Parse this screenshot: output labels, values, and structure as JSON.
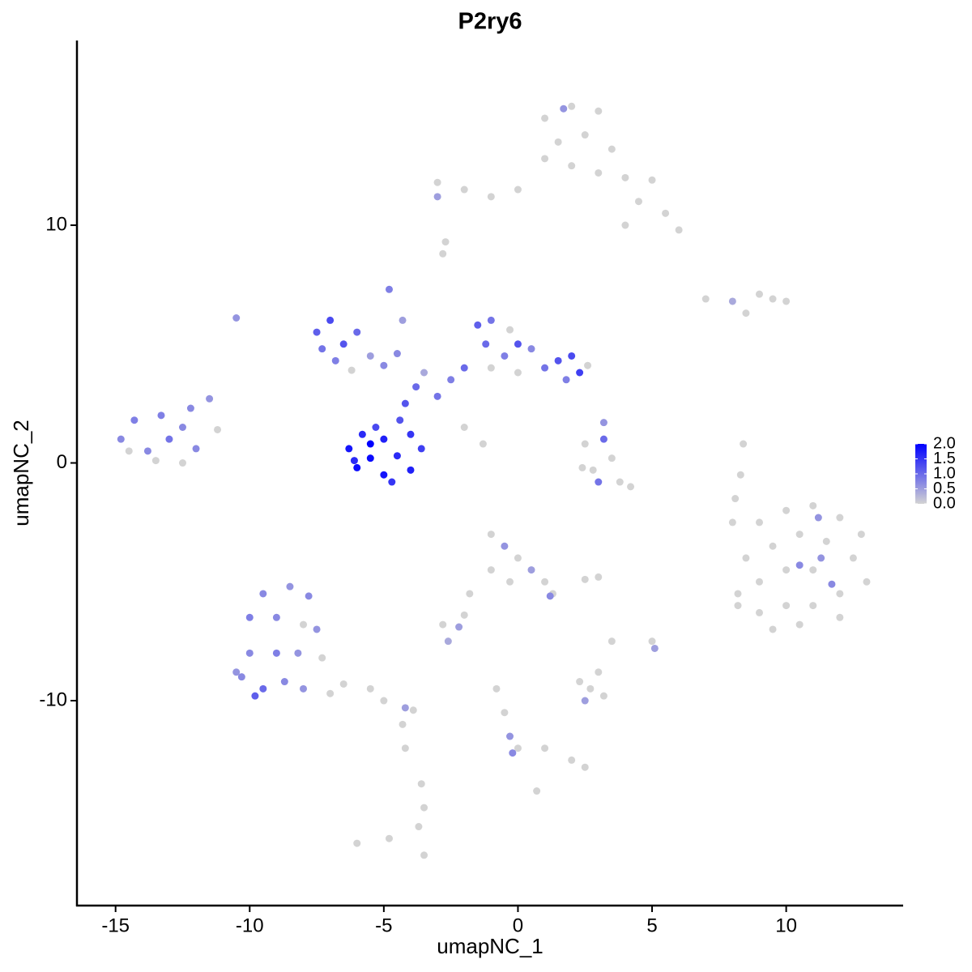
{
  "chart_data": {
    "type": "scatter",
    "title": "P2ry6",
    "x_label": "umapNC_1",
    "y_label": "umapNC_2",
    "xlim": [
      -16.44,
      14.36
    ],
    "ylim": [
      -18.62,
      17.77
    ],
    "xticks": [
      -15,
      -10,
      -5,
      0,
      5,
      10
    ],
    "yticks": [
      -10,
      0,
      10
    ],
    "low_color": "#d3d3d3",
    "high_color": "#0000ff",
    "clim": [
      0,
      2
    ],
    "colorbar_ticks": [
      {
        "value": 0,
        "label": "0.0"
      },
      {
        "value": 0.5,
        "label": "0.5"
      },
      {
        "value": 1,
        "label": "1.0"
      },
      {
        "value": 1.5,
        "label": "1.5"
      },
      {
        "value": 2,
        "label": "2.0"
      }
    ],
    "x": [
      1,
      2,
      3,
      1.5,
      2.5,
      3.5,
      1,
      2,
      3,
      4,
      5,
      4.5,
      5.5,
      6,
      4,
      -1,
      -2,
      -3,
      -3,
      0,
      1.7,
      -2.8,
      -2.7,
      7,
      8,
      9,
      9.5,
      10,
      8.5,
      -6.3,
      -5.8,
      -5.5,
      -5,
      -4.5,
      -4,
      -4,
      -5,
      -6,
      -3.6,
      -5.5,
      -4.7,
      -5.3,
      -4.4,
      -6.1,
      -4.2,
      -3.8,
      -3.5,
      -3,
      -2.5,
      -2,
      -4.5,
      -4.8,
      -4.3,
      -2,
      -1.3,
      -7.5,
      -7,
      -7.3,
      -6.5,
      -6,
      -6.8,
      -5.5,
      -5,
      -6.2,
      -1.5,
      -1,
      -1.2,
      -0.5,
      0,
      0.5,
      1,
      1.5,
      2,
      2.3,
      1.8,
      -1,
      0,
      2.6,
      -0.3,
      2.5,
      3.2,
      3.5,
      2.8,
      3.8,
      4.2,
      3,
      2.4,
      3.2,
      -14.8,
      -14.3,
      -13.8,
      -13.3,
      -13,
      -12.5,
      -12,
      -12.2,
      -11.5,
      -13.5,
      -12.5,
      -11.2,
      -14.5,
      -10.5,
      9,
      10,
      11,
      12,
      12.8,
      8.5,
      9.5,
      10.5,
      11.5,
      12.5,
      13,
      9,
      10,
      11,
      12,
      8.2,
      9,
      10,
      11,
      12,
      9.5,
      10.5,
      11.3,
      10.5,
      11.7,
      11.2,
      8.2,
      8.3,
      8.1,
      8,
      8.4,
      -9.5,
      -8.5,
      -7.8,
      -10,
      -9,
      -8,
      -7.5,
      -10,
      -9,
      -8.2,
      -7.3,
      -10.3,
      -9.5,
      -8.7,
      -8,
      -7,
      -10.5,
      -6.5,
      -5.5,
      -5,
      -4.2,
      -3.9,
      -4.3,
      -4.2,
      -3.6,
      -3.5,
      -3.7,
      -6,
      -4.8,
      -9.8,
      -1,
      -0.5,
      0,
      0.5,
      1,
      -1,
      -0.3,
      1.3,
      1.2,
      -1.8,
      -2,
      -2.8,
      -2.2,
      -2.6,
      2.5,
      3,
      2.3,
      2.7,
      3,
      2.5,
      3.2,
      5,
      5.1,
      3.5,
      -0.8,
      -0.5,
      -0.3,
      0,
      -0.2,
      1,
      2,
      2.5,
      0.7,
      -3.5
    ],
    "y": [
      14.5,
      15,
      14.8,
      13.5,
      13.8,
      13.2,
      12.8,
      12.5,
      12.2,
      12,
      11.9,
      11,
      10.5,
      9.8,
      10,
      11.2,
      11.5,
      11.8,
      11.2,
      11.5,
      14.9,
      8.8,
      9.3,
      6.9,
      6.8,
      7.1,
      6.9,
      6.8,
      6.3,
      0.6,
      1.2,
      0.2,
      1,
      0.3,
      1.2,
      -0.3,
      -0.5,
      -0.2,
      0.6,
      0.8,
      -0.8,
      1.5,
      1.8,
      0.1,
      2.5,
      3.2,
      3.8,
      2.8,
      3.5,
      4,
      4.6,
      7.3,
      6,
      1.5,
      0.8,
      5.5,
      6,
      4.8,
      5,
      5.5,
      4.3,
      4.5,
      4.1,
      3.9,
      5.8,
      6,
      5,
      4.5,
      5,
      4.8,
      4,
      4.3,
      4.5,
      3.8,
      3.5,
      4,
      3.8,
      4.1,
      5.6,
      0.8,
      1,
      0.2,
      -0.3,
      -0.8,
      -1,
      -0.8,
      -0.2,
      1.7,
      1,
      1.8,
      0.5,
      2,
      1,
      1.5,
      0.6,
      2.3,
      2.7,
      0.1,
      0,
      1.4,
      0.5,
      6.1,
      -2.5,
      -2,
      -1.8,
      -2.3,
      -3,
      -4,
      -3.5,
      -3,
      -3.3,
      -4,
      -5,
      -5,
      -4.5,
      -4.5,
      -5.5,
      -5.5,
      -6.3,
      -6,
      -6,
      -6.5,
      -7,
      -6.8,
      -4,
      -4.3,
      -5.1,
      -2.3,
      -6,
      -0.5,
      -1.5,
      -2.5,
      0.8,
      -5.5,
      -5.2,
      -5.6,
      -6.5,
      -6.5,
      -6.8,
      -7,
      -8,
      -8,
      -8,
      -8.2,
      -9,
      -9.5,
      -9.2,
      -9.5,
      -9.7,
      -8.8,
      -9.3,
      -9.5,
      -10,
      -10.3,
      -10.4,
      -11,
      -12,
      -13.5,
      -14.5,
      -15.3,
      -16,
      -15.8,
      -9.8,
      -3,
      -3.5,
      -4,
      -4.5,
      -5,
      -4.5,
      -5,
      -5.5,
      -5.6,
      -5.5,
      -6.4,
      -6.8,
      -6.9,
      -7.5,
      -4.9,
      -4.8,
      -9.2,
      -9.5,
      -8.8,
      -10,
      -9.8,
      -7.5,
      -7.8,
      -7.5,
      -9.5,
      -10.5,
      -11.5,
      -12,
      -12.2,
      -12,
      -12.5,
      -12.8,
      -13.8,
      -16.5
    ],
    "values": [
      0,
      0,
      0,
      0,
      0,
      0,
      0,
      0,
      0,
      0,
      0,
      0,
      0,
      0,
      0,
      0,
      0,
      0,
      0.5,
      0,
      0.6,
      0,
      0,
      0,
      0.4,
      0,
      0,
      0,
      0,
      1.8,
      1.6,
      1.9,
      1.7,
      1.6,
      1.5,
      1.7,
      1.8,
      1.9,
      1.4,
      2.0,
      1.5,
      1.3,
      1.2,
      1.6,
      1.2,
      1.0,
      0.4,
      0.9,
      0.8,
      1.0,
      0.7,
      0.8,
      0.5,
      0,
      0,
      1.1,
      1.3,
      0.9,
      1.2,
      1.0,
      0.8,
      0.5,
      0.7,
      0,
      1.1,
      0.9,
      1.0,
      0.8,
      1.2,
      0.7,
      0.9,
      1.2,
      1.3,
      1.4,
      0.8,
      0,
      0,
      0,
      0,
      0,
      1.0,
      0,
      0,
      0,
      0,
      0.9,
      0,
      0.6,
      0.7,
      0.8,
      0.7,
      0.8,
      0.9,
      0.7,
      0.7,
      0.7,
      0.6,
      0,
      0,
      0,
      0,
      0.6,
      0,
      0,
      0,
      0,
      0,
      0,
      0,
      0,
      0,
      0,
      0,
      0,
      0,
      0,
      0,
      0,
      0,
      0,
      0,
      0,
      0,
      0,
      0.6,
      0.7,
      0.7,
      0.6,
      0,
      0,
      0,
      0,
      0,
      0.7,
      0.6,
      0.7,
      0.8,
      0.7,
      0,
      0.6,
      0.7,
      0.8,
      0.6,
      0,
      0.7,
      1.0,
      0.7,
      0.6,
      0,
      0.6,
      0,
      0,
      0,
      0.5,
      0,
      0,
      0,
      0,
      0,
      0,
      0,
      0,
      1.1,
      0,
      0.6,
      0,
      0.5,
      0,
      0,
      0,
      0,
      0.7,
      0,
      0,
      0,
      0.5,
      0.4,
      0,
      0,
      0,
      0,
      0,
      0.5,
      0,
      0,
      0.5,
      0,
      0,
      0,
      0.6,
      0,
      0.7,
      0,
      0,
      0,
      0,
      0
    ]
  }
}
